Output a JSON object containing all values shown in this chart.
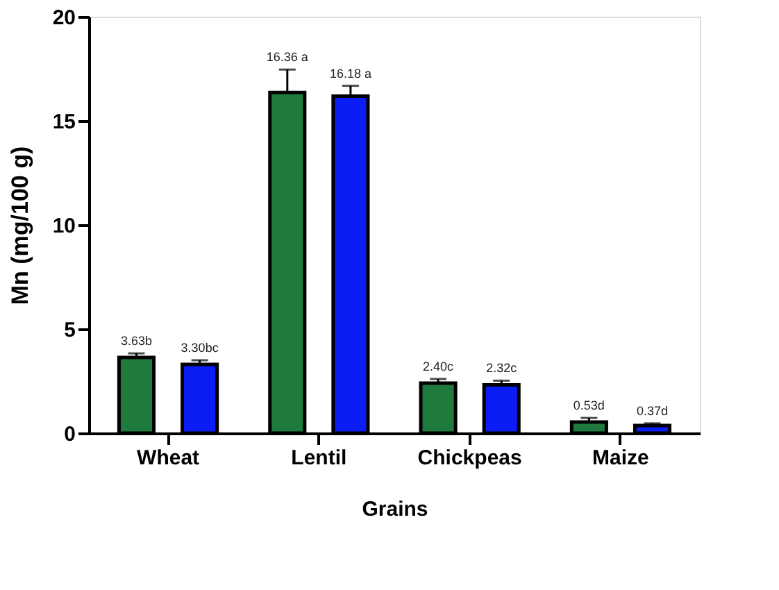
{
  "chart_data": {
    "type": "bar",
    "xlabel": "Grains",
    "ylabel": "Mn (mg/100 g)",
    "categories": [
      "Wheat",
      "Lentil",
      "Chickpeas",
      "Maize"
    ],
    "series": [
      {
        "color": "#1f7a3e",
        "values": [
          3.63,
          16.36,
          2.4,
          0.53
        ],
        "errors": [
          0.2,
          1.1,
          0.2,
          0.2
        ],
        "value_labels": [
          "3.63b",
          "16.36 a",
          "2.40c",
          "0.53d"
        ]
      },
      {
        "color": "#0c1cf5",
        "values": [
          3.3,
          16.18,
          2.32,
          0.37
        ],
        "errors": [
          0.2,
          0.5,
          0.2,
          0.1
        ],
        "value_labels": [
          "3.30bc",
          "16.18 a",
          "2.32c",
          "0.37d"
        ]
      }
    ],
    "ylim": [
      0,
      20
    ],
    "yticks": [
      0,
      5,
      10,
      15,
      20
    ],
    "grid": false,
    "legend": false
  }
}
